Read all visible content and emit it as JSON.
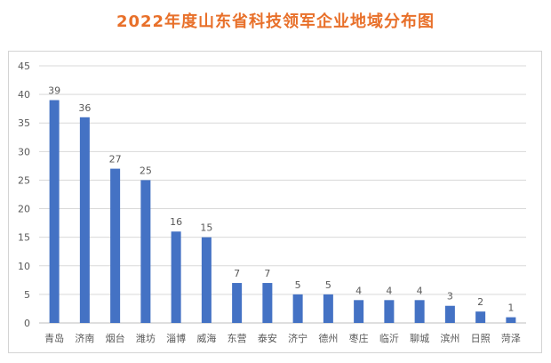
{
  "colors": {
    "title": "#e8702a",
    "bar": "#4472c4",
    "grid": "#d9d9d9",
    "text": "#595959"
  },
  "chart_data": {
    "type": "bar",
    "title": "2022年度山东省科技领军企业地域分布图",
    "xlabel": "",
    "ylabel": "",
    "categories": [
      "青岛",
      "济南",
      "烟台",
      "潍坊",
      "淄博",
      "威海",
      "东营",
      "泰安",
      "济宁",
      "德州",
      "枣庄",
      "临沂",
      "聊城",
      "滨州",
      "日照",
      "菏泽"
    ],
    "values": [
      39,
      36,
      27,
      25,
      16,
      15,
      7,
      7,
      5,
      5,
      4,
      4,
      4,
      3,
      2,
      1
    ],
    "ylim": [
      0,
      45
    ],
    "yticks": [
      0,
      5,
      10,
      15,
      20,
      25,
      30,
      35,
      40,
      45
    ],
    "grid": true,
    "data_labels": true
  }
}
